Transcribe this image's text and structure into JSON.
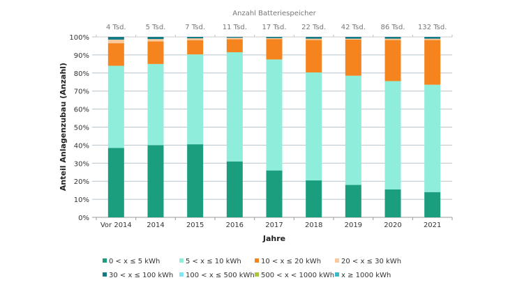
{
  "chart_data": {
    "type": "bar",
    "stacked": true,
    "top_axis_title": "Anzahl Batteriespeicher",
    "top_labels": [
      "4 Tsd.",
      "5 Tsd.",
      "7 Tsd.",
      "11 Tsd.",
      "17 Tsd.",
      "22 Tsd.",
      "42 Tsd.",
      "86 Tsd.",
      "132 Tsd."
    ],
    "xlabel": "Jahre",
    "ylabel": "Anteil Anlagenzubau (Anzahl)",
    "ylim": [
      0,
      100
    ],
    "yticks": [
      "0%",
      "10%",
      "20%",
      "30%",
      "40%",
      "50%",
      "60%",
      "70%",
      "80%",
      "90%",
      "100%"
    ],
    "grid": true,
    "legend_position": "bottom",
    "categories": [
      "Vor 2014",
      "2014",
      "2015",
      "2016",
      "2017",
      "2018",
      "2019",
      "2020",
      "2021"
    ],
    "series": [
      {
        "name": "0 < x ≤ 5 kWh",
        "color": "#1a9e7e",
        "values": [
          38.5,
          40,
          40.5,
          31,
          26,
          20.5,
          18,
          15.5,
          14
        ]
      },
      {
        "name": "5 < x ≤ 10 kWh",
        "color": "#8eeedb",
        "values": [
          45.5,
          45,
          49.8,
          60.5,
          61.5,
          59.8,
          60.5,
          60,
          59.5
        ]
      },
      {
        "name": "10 < x ≤ 20 kWh",
        "color": "#f5841f",
        "values": [
          12.5,
          12.5,
          7.9,
          7.2,
          11.3,
          18,
          20,
          22.8,
          24.8
        ]
      },
      {
        "name": "20 < x ≤ 30 kWh",
        "color": "#fbc89a",
        "values": [
          2,
          1.3,
          1,
          0.8,
          0.5,
          0.7,
          0.5,
          0.7,
          0.7
        ]
      },
      {
        "name": "30 < x ≤ 100 kWh",
        "color": "#127a86",
        "values": [
          1.5,
          1.2,
          0.8,
          0.5,
          0.7,
          1,
          1,
          1,
          1
        ]
      },
      {
        "name": "100 < x ≤ 500 kWh",
        "color": "#7fe6f5",
        "values": [
          0,
          0,
          0,
          0,
          0,
          0,
          0,
          0,
          0
        ]
      },
      {
        "name": "500 < x < 1000 kWh",
        "color": "#a8c83c",
        "values": [
          0,
          0,
          0,
          0,
          0,
          0,
          0,
          0,
          0
        ]
      },
      {
        "name": "x ≥ 1000 kWh",
        "color": "#3ab8cc",
        "values": [
          0,
          0,
          0,
          0,
          0,
          0,
          0,
          0,
          0
        ]
      }
    ]
  }
}
